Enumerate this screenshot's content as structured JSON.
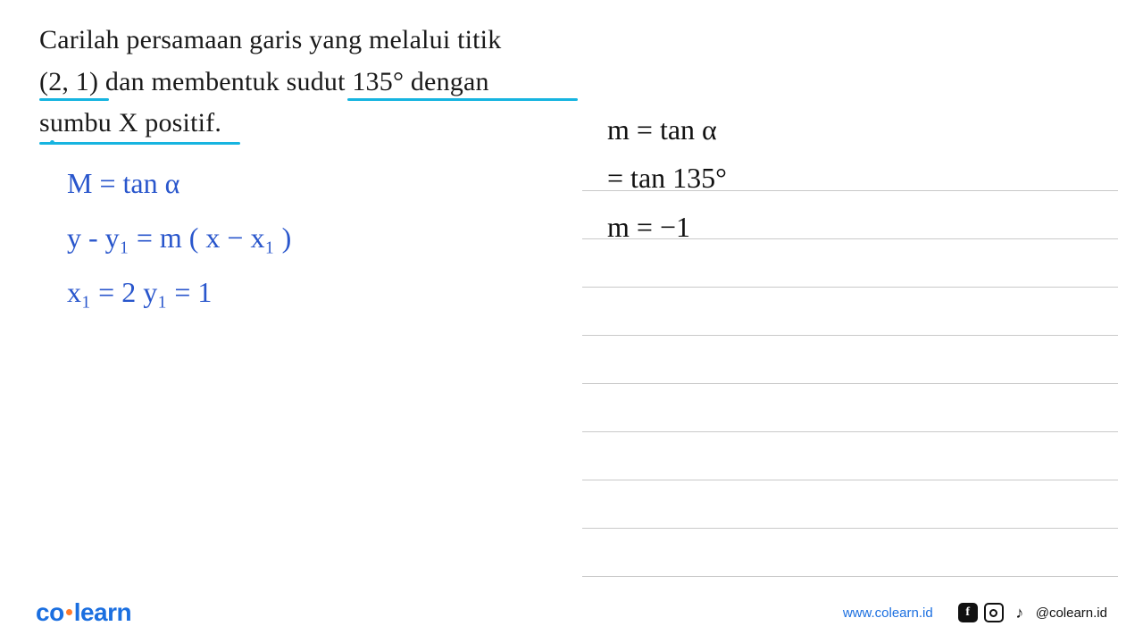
{
  "problem": {
    "line1": "Carilah  persamaan  garis  yang  melalui  titik",
    "line2_a": "(2,  1)",
    "line2_b": "  dan  membentuk  ",
    "line2_c": "sudut  135°  dengan",
    "line3": "sumbu X  positif.",
    "underline_color": "#16b4e0",
    "text_color": "#1a1a1a"
  },
  "handwriting_left": {
    "color": "#2956cc",
    "line1": "M = tan α",
    "line2": "y - y₁ = m ( x − x₁ )",
    "line3": "x₁ = 2    y₁ = 1"
  },
  "handwriting_right": {
    "color": "#111111",
    "line1": "m = tan α",
    "line2": "   = tan 135°",
    "line3": "m  =  −1"
  },
  "notebook": {
    "rule_color": "#c9c9c9",
    "rule_count": 9
  },
  "footer": {
    "logo_co": "co",
    "logo_learn": "learn",
    "logo_color": "#1b6fe0",
    "dot_color": "#ff7a2b",
    "website": "www.colearn.id",
    "handle": "@colearn.id",
    "website_color": "#1b6fe0"
  }
}
